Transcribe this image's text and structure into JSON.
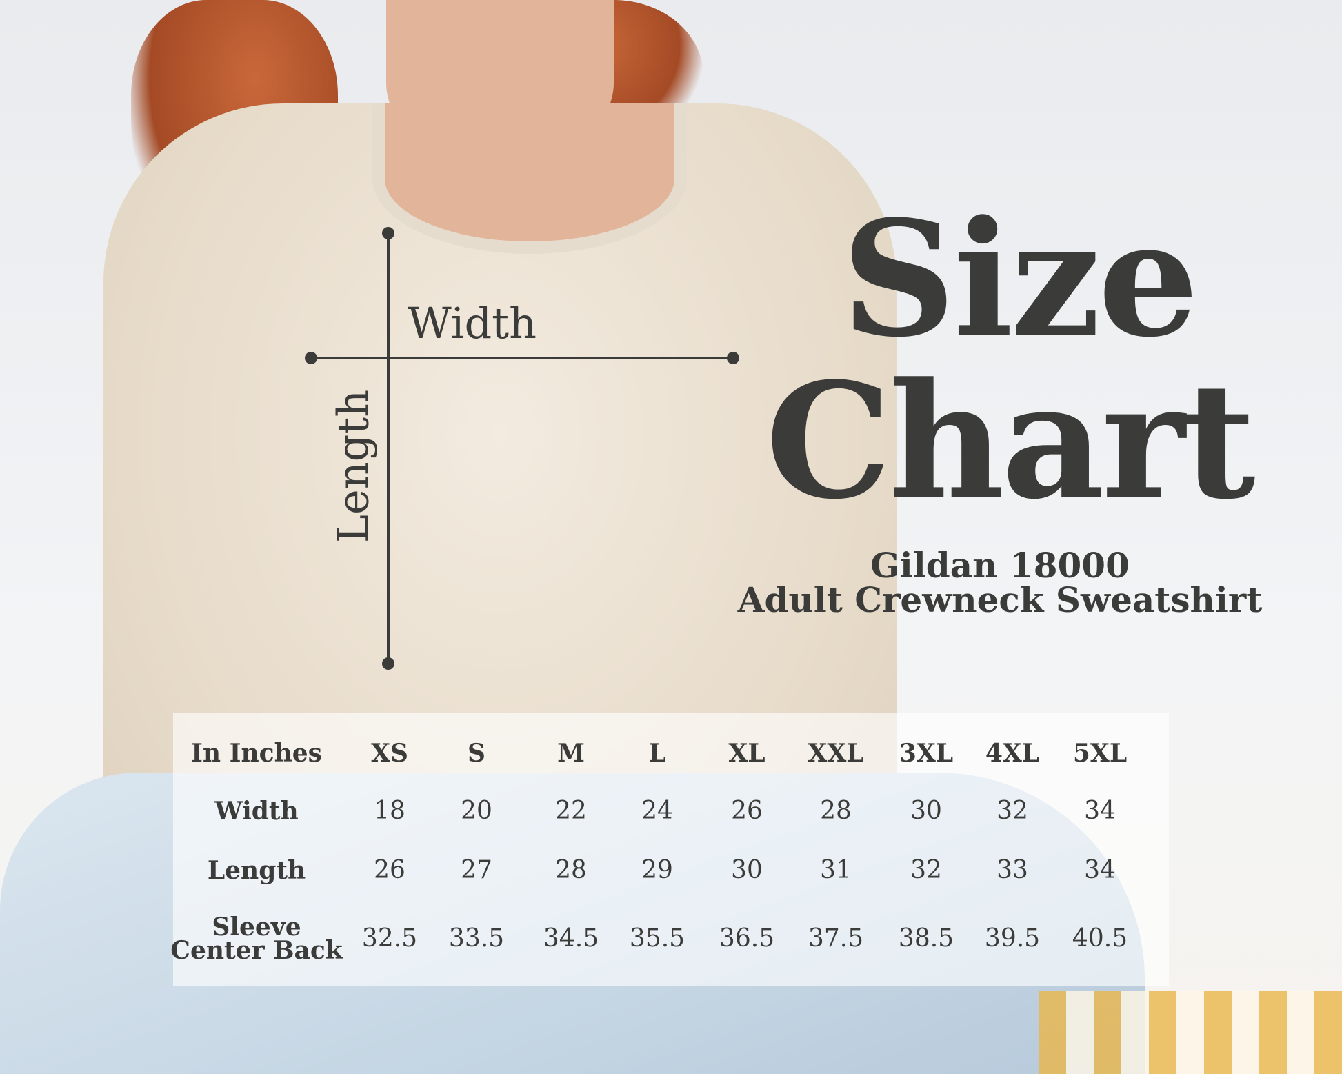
{
  "title_line1": "Size",
  "title_line2": "Chart",
  "product_line1": "Gildan 18000",
  "product_line2": "Adult Crewneck Sweatshirt",
  "diagram": {
    "width_label": "Width",
    "length_label": "Length"
  },
  "table": {
    "corner": "In Inches",
    "sizes": [
      "XS",
      "S",
      "M",
      "L",
      "XL",
      "XXL",
      "3XL",
      "4XL",
      "5XL"
    ],
    "rows": [
      {
        "label": "Width",
        "values": [
          "18",
          "20",
          "22",
          "24",
          "26",
          "28",
          "30",
          "32",
          "34"
        ]
      },
      {
        "label": "Length",
        "values": [
          "26",
          "27",
          "28",
          "29",
          "30",
          "31",
          "32",
          "33",
          "34"
        ]
      },
      {
        "label_line1": "Sleeve",
        "label_line2": "Center Back",
        "values": [
          "32.5",
          "33.5",
          "34.5",
          "35.5",
          "36.5",
          "37.5",
          "38.5",
          "39.5",
          "40.5"
        ]
      }
    ]
  },
  "colors": {
    "text": "#3b3b39",
    "sweatshirt": "#ece3d5",
    "jeans": "#c9d9e6"
  }
}
